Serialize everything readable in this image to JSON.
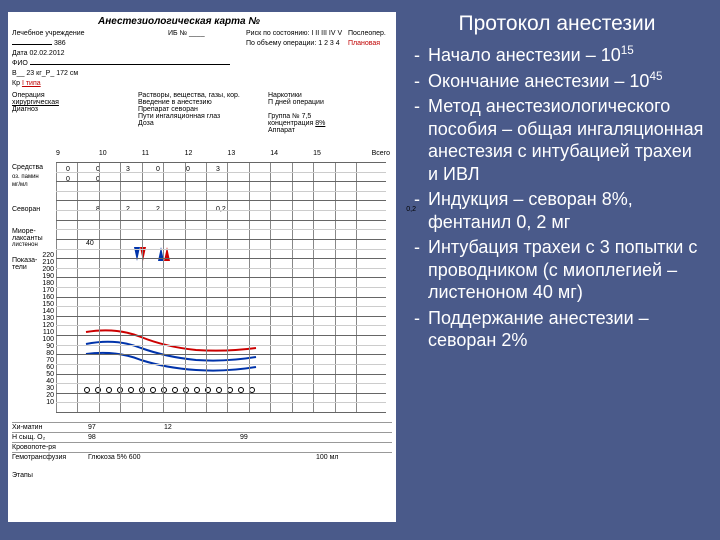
{
  "form": {
    "title": "Анестезиологическая карта №",
    "header": {
      "institution_lbl": "Лечебное учреждение",
      "hist_lbl": "ИБ № ____",
      "hist_val": "386",
      "date_lbl": "Дата",
      "date_val": "02.02.2012",
      "fio_lbl": "ФИО",
      "age_lbl": "В",
      "weight_lbl": "М",
      "weight_val": "23",
      "height_lbl": "кг",
      "height_val": "172",
      "blood_lbl": "Кр",
      "blood_val": "I типа",
      "blood_color": "#c00000",
      "risk_lbl": "Риск по состоянию:",
      "risk_opts": "I  II  III  IV  V",
      "op_risk_lbl": "По объему операции:",
      "op_risk_opts": "1  2  3  4",
      "planned_lbl": "Плановая",
      "planned_color": "#c00000",
      "postop_lbl": "Послеопер."
    },
    "mid": {
      "operation_lbl": "Операция",
      "surgical_lbl": "хирургическая",
      "diagnosis_lbl": "Диагноз",
      "narcotics_lbl": "Наркотики",
      "solutions_lbl": "Растворы, вещества, газы, кор.",
      "intro_lbl": "Введение в анестезию",
      "days_lbl": "П дней операции",
      "prep_lbl": "Препарат   севоран",
      "conc_lbl": "концентрация",
      "conc_val": "8%",
      "catheter_lbl": "Пути   ингаляционная глаз",
      "group_lbl": "Группа   №   7,5",
      "dose_lbl": "Доза",
      "apparatus_lbl": "Аппарат"
    },
    "timeline": {
      "time_labels": [
        "9",
        "10",
        "11",
        "12",
        "13",
        "14",
        "15",
        "Всего"
      ],
      "half_hours": 14
    },
    "datarows": {
      "media_lbl": "Средства",
      "media_sub1": "оз. памин",
      "media_sub2": "мг/мл",
      "vals_row1": [
        "0",
        "0",
        "3",
        "0",
        "0",
        "3"
      ],
      "vals_row2": [
        "0",
        "0",
        "",
        "",
        "",
        ""
      ],
      "sevoran_lbl": "Севоран",
      "sevoran_vals": [
        "",
        "8",
        "2",
        "2",
        "",
        "0,2"
      ],
      "sevoran_total": "0,2",
      "mioreleax_lbl": "Миоре-лаксанты",
      "mioreleax_sub": "листенон",
      "mioreleax_val": "40"
    },
    "y_axis": {
      "values": [
        220,
        210,
        200,
        190,
        180,
        170,
        160,
        150,
        140,
        130,
        120,
        110,
        100,
        90,
        80,
        70,
        60,
        50,
        40,
        30,
        20,
        10
      ],
      "label_bp": "Показа-тели",
      "label_hr": ""
    },
    "bottom": {
      "hematocrit_lbl": "Хи-матин",
      "hematocrit_val": "97",
      "hb_row": [
        "",
        "12",
        "",
        "",
        "",
        "",
        ""
      ],
      "sat_lbl": "Н сыщ. О₂",
      "sat_vals": [
        "98",
        "",
        "99"
      ],
      "krovopot_lbl": "Кровопоте-ря",
      "transfus_lbl": "Гемотрансфузия",
      "etapi_lbl": "Этапы",
      "induction_note": "Глюкоза 5% + ...",
      "bottom_scale": "Глюкоза 5% 600",
      "bottom_dose": "100 мл"
    },
    "curves": {
      "sys_color": "#cc0000",
      "dia_color": "#0033aa",
      "hr_color": "#0033aa",
      "arrow_red": "#cc0000",
      "arrow_blue": "#0033aa"
    }
  },
  "protocol": {
    "title": "Протокол анестезии",
    "items": [
      {
        "pre": "Начало анестезии – 10",
        "sup": "15",
        "post": ""
      },
      {
        "pre": "Окончание анестезии – 10",
        "sup": "45",
        "post": ""
      },
      {
        "pre": "Метод анестезиологического пособия – общая ингаляционная анестезия с интубацией трахеи и ИВЛ",
        "sup": "",
        "post": ""
      },
      {
        "pre": "Индукция – севоран 8%, фентанил 0, 2 мг",
        "sup": "",
        "post": ""
      },
      {
        "pre": "Интубация трахеи с ",
        "sup": "",
        "post": "3 попытки с проводником (с миоплегией – листеноном 40 мг)"
      },
      {
        "pre": "Поддержание анестезии – севоран 2%",
        "sup": "",
        "post": ""
      }
    ]
  },
  "colors": {
    "slide_bg": "#4a5a8a",
    "text_color": "#ffffff",
    "form_bg": "#ffffff"
  }
}
